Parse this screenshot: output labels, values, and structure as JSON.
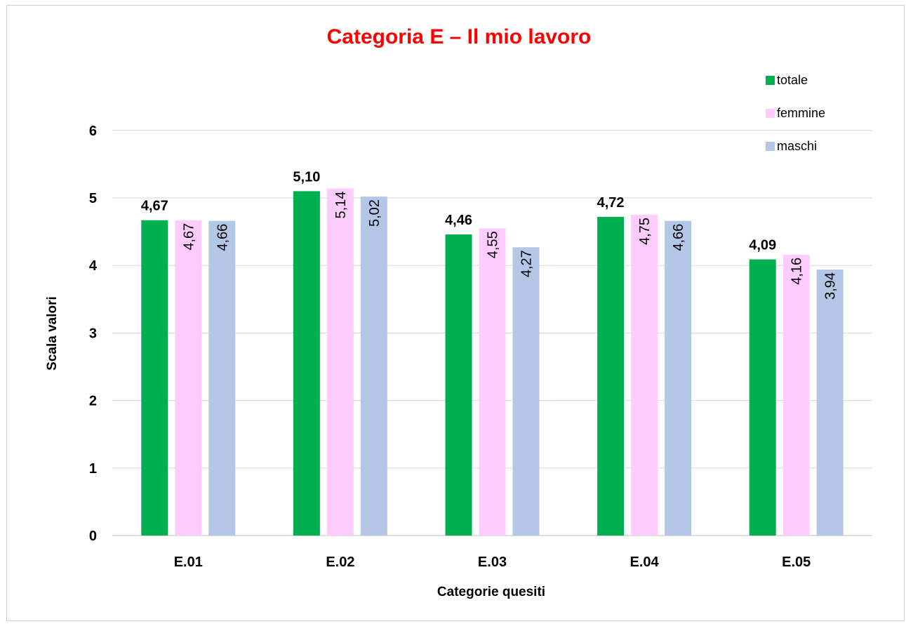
{
  "chart_data": {
    "type": "bar",
    "title": "Categoria E – Il mio lavoro",
    "xlabel": "Categorie quesiti",
    "ylabel": "Scala valori",
    "categories": [
      "E.01",
      "E.02",
      "E.03",
      "E.04",
      "E.05"
    ],
    "series": [
      {
        "name": "totale",
        "color": "#00b050",
        "values": [
          4.67,
          5.1,
          4.46,
          4.72,
          4.09
        ],
        "labels": [
          "4,67",
          "5,10",
          "4,46",
          "4,72",
          "4,09"
        ]
      },
      {
        "name": "femmine",
        "color": "#ffccff",
        "values": [
          4.67,
          5.14,
          4.55,
          4.75,
          4.16
        ],
        "labels": [
          "4,67",
          "5,14",
          "4,55",
          "4,75",
          "4,16"
        ]
      },
      {
        "name": "maschi",
        "color": "#b4c7e7",
        "values": [
          4.66,
          5.02,
          4.27,
          4.66,
          3.94
        ],
        "labels": [
          "4,66",
          "5,02",
          "4,27",
          "4,66",
          "3,94"
        ]
      }
    ],
    "ylim": [
      0,
      6
    ],
    "yticks": [
      "0",
      "1",
      "2",
      "3",
      "4",
      "5",
      "6"
    ],
    "grid": true,
    "legend": "top-right",
    "title_color": "#ff0000"
  }
}
